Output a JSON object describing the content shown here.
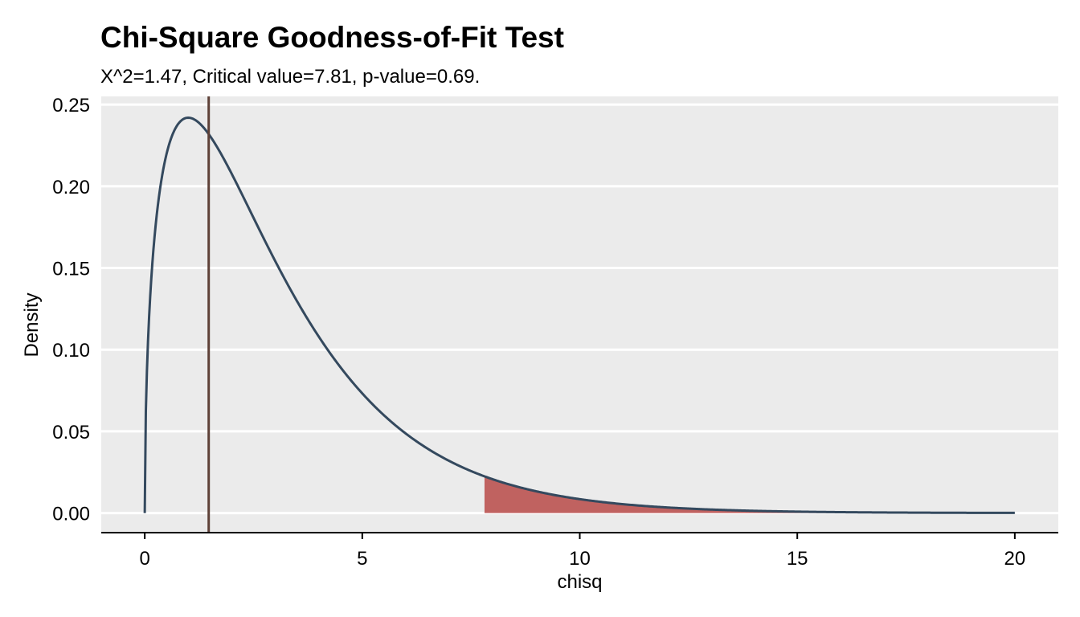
{
  "title": "Chi-Square Goodness-of-Fit Test",
  "subtitle": "X^2=1.47, Critical value=7.81, p-value=0.69.",
  "chart_data": {
    "type": "area",
    "title": "Chi-Square Goodness-of-Fit Test",
    "subtitle": "X^2=1.47, Critical value=7.81, p-value=0.69.",
    "xlabel": "chisq",
    "ylabel": "Density",
    "xlim": [
      -1,
      21
    ],
    "ylim": [
      -0.012,
      0.255
    ],
    "x_ticks": [
      0,
      5,
      10,
      15,
      20
    ],
    "x_tick_labels": [
      "0",
      "5",
      "10",
      "15",
      "20"
    ],
    "y_ticks": [
      0,
      0.05,
      0.1,
      0.15,
      0.2,
      0.25
    ],
    "y_tick_labels": [
      "0.00",
      "0.05",
      "0.10",
      "0.15",
      "0.20",
      "0.25"
    ],
    "grid": true,
    "series": [
      {
        "kind": "density",
        "distribution": "chi-square",
        "df": 3,
        "x_range": [
          0,
          20
        ],
        "x": [
          0,
          0.25,
          0.5,
          0.75,
          1,
          1.5,
          2,
          2.5,
          3,
          4,
          5,
          6,
          7,
          8,
          9,
          10,
          12,
          14,
          16,
          18,
          20
        ],
        "y": [
          0,
          0.176,
          0.2197,
          0.2373,
          0.242,
          0.2312,
          0.2076,
          0.1789,
          0.1542,
          0.108,
          0.0736,
          0.0488,
          0.032,
          0.0207,
          0.0132,
          0.0085,
          0.0034,
          0.0013,
          0.0005,
          0.0002,
          0.0001
        ],
        "color": "#34495e"
      }
    ],
    "shaded_region": {
      "from": 7.81,
      "to": 20,
      "color": "#b94a48",
      "meaning": "rejection region"
    },
    "vline": {
      "x": 1.47,
      "color": "#5d4037",
      "meaning": "test statistic"
    },
    "colors": {
      "panel": "#ebebeb",
      "grid": "#ffffff",
      "curve": "#34495e",
      "shade": "#b94a48",
      "statistic": "#5d4037"
    }
  }
}
